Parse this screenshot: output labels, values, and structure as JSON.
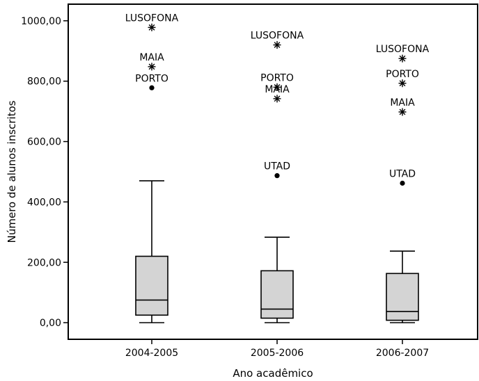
{
  "chart_data": {
    "type": "boxplot",
    "title": "",
    "xlabel": "Ano acadêmico",
    "ylabel": "Número de alunos inscritos",
    "ylim": [
      -55,
      1055
    ],
    "yticks": [
      0,
      200,
      400,
      600,
      800,
      1000
    ],
    "ytick_labels": [
      "0,00",
      "200,00",
      "400,00",
      "600,00",
      "800,00",
      "1000,00"
    ],
    "categories": [
      "2004-2005",
      "2005-2006",
      "2006-2007"
    ],
    "box_color": "#d4d4d4",
    "boxes": [
      {
        "category": "2004-2005",
        "whisker_low": 0,
        "q1": 25,
        "median": 75,
        "q3": 220,
        "whisker_high": 470,
        "outliers": [
          {
            "label": "LUSOFONA",
            "value": 978,
            "marker": "extreme"
          },
          {
            "label": "MAIA",
            "value": 848,
            "marker": "extreme"
          },
          {
            "label": "PORTO",
            "value": 778,
            "marker": "outlier"
          }
        ]
      },
      {
        "category": "2005-2006",
        "whisker_low": 0,
        "q1": 15,
        "median": 45,
        "q3": 172,
        "whisker_high": 283,
        "outliers": [
          {
            "label": "LUSOFONA",
            "value": 920,
            "marker": "extreme"
          },
          {
            "label": "PORTO",
            "value": 780,
            "marker": "extreme"
          },
          {
            "label": "MAIA",
            "value": 742,
            "marker": "extreme"
          },
          {
            "label": "UTAD",
            "value": 487,
            "marker": "outlier"
          }
        ]
      },
      {
        "category": "2006-2007",
        "whisker_low": 0,
        "q1": 8,
        "median": 37,
        "q3": 163,
        "whisker_high": 237,
        "outliers": [
          {
            "label": "LUSOFONA",
            "value": 875,
            "marker": "extreme"
          },
          {
            "label": "PORTO",
            "value": 793,
            "marker": "extreme"
          },
          {
            "label": "MAIA",
            "value": 698,
            "marker": "extreme"
          },
          {
            "label": "UTAD",
            "value": 462,
            "marker": "outlier"
          }
        ]
      }
    ]
  }
}
